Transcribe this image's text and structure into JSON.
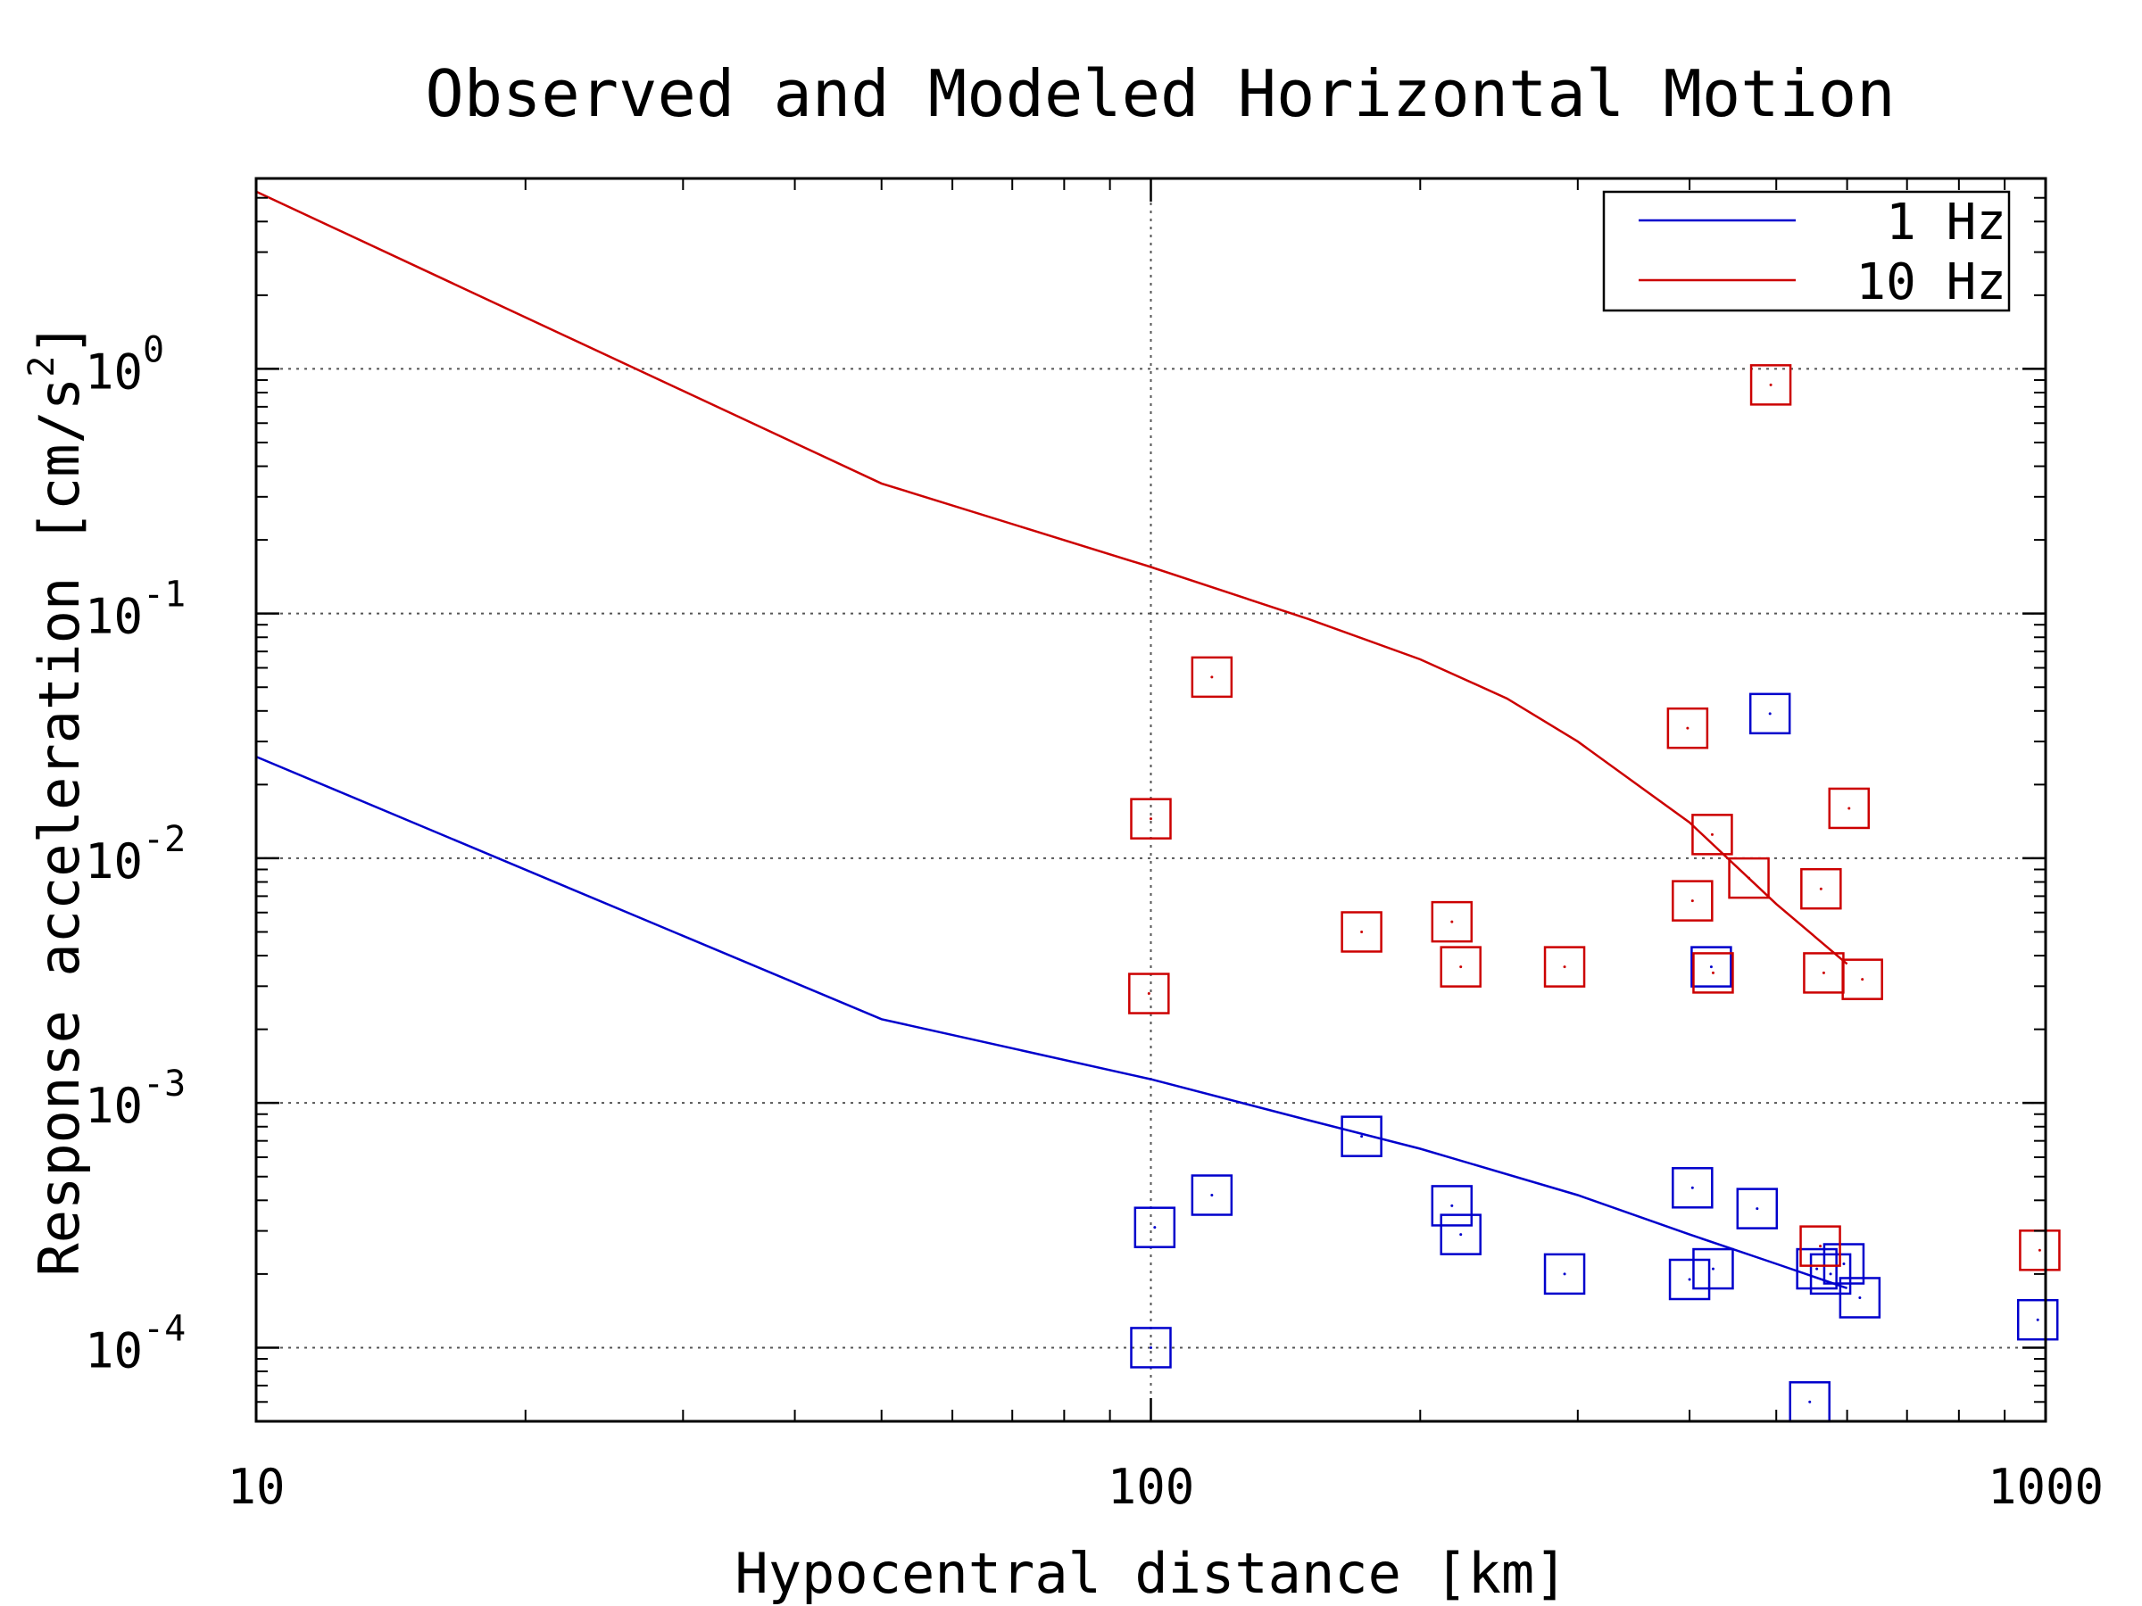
{
  "chart_data": {
    "type": "scatter",
    "title": "Observed and Modeled Horizontal Motion",
    "xlabel": "Hypocentral distance [km]",
    "ylabel_main": "Response acceleration [cm/s",
    "ylabel_sup": "2",
    "ylabel_close": "]",
    "x_scale": "log",
    "y_scale": "log",
    "xlim": [
      10,
      1000
    ],
    "ylim": [
      5e-05,
      6
    ],
    "grid": true,
    "legend_position": "top-right",
    "x_ticks": [
      {
        "value": 10,
        "label": "10"
      },
      {
        "value": 100,
        "label": "100"
      },
      {
        "value": 1000,
        "label": "1000"
      }
    ],
    "y_ticks": [
      {
        "value": 0.0001,
        "base": "10",
        "exp": "-4"
      },
      {
        "value": 0.001,
        "base": "10",
        "exp": "-3"
      },
      {
        "value": 0.01,
        "base": "10",
        "exp": "-2"
      },
      {
        "value": 0.1,
        "base": "10",
        "exp": "-1"
      },
      {
        "value": 1,
        "base": "10",
        "exp": "0"
      }
    ],
    "series": [
      {
        "name": "1 Hz",
        "color": "#0000cc",
        "model_line": {
          "x": [
            10,
            50,
            100,
            150,
            200,
            300,
            400,
            500,
            600
          ],
          "y": [
            0.026,
            0.0022,
            0.00125,
            0.00085,
            0.00065,
            0.00042,
            0.00029,
            0.00022,
            0.000175
          ]
        },
        "observed": {
          "x": [
            100,
            101,
            117,
            172,
            217,
            222,
            290,
            400,
            403,
            425,
            476,
            545,
            555,
            575,
            595,
            620,
            980
          ],
          "y": [
            0.0001,
            0.00031,
            0.00042,
            0.00073,
            0.00038,
            0.00029,
            0.0002,
            0.00019,
            0.00045,
            0.00021,
            0.00037,
            6e-05,
            0.00021,
            0.0002,
            0.00022,
            0.00016,
            0.00013
          ]
        },
        "observed_extra": {
          "x": [
            423,
            492
          ],
          "y": [
            0.0036,
            0.039
          ]
        }
      },
      {
        "name": "10 Hz",
        "color": "#cc0000",
        "model_line": {
          "x": [
            10,
            50,
            100,
            150,
            200,
            250,
            300,
            400,
            500,
            600
          ],
          "y": [
            5.3,
            0.34,
            0.155,
            0.095,
            0.065,
            0.045,
            0.03,
            0.014,
            0.0065,
            0.0037
          ]
        },
        "observed": {
          "x": [
            100,
            99.5,
            117,
            172,
            217,
            222,
            290,
            398,
            403,
            424,
            425,
            466,
            493,
            561,
            565,
            603,
            624,
            985
          ],
          "y": [
            0.0145,
            0.0028,
            0.055,
            0.005,
            0.0055,
            0.0036,
            0.0036,
            0.034,
            0.0067,
            0.0125,
            0.0034,
            0.0083,
            0.86,
            0.0075,
            0.0034,
            0.016,
            0.0032,
            0.00025
          ]
        },
        "observed_extra2": {
          "x": [
            560
          ],
          "y": [
            0.00026
          ]
        }
      }
    ]
  }
}
